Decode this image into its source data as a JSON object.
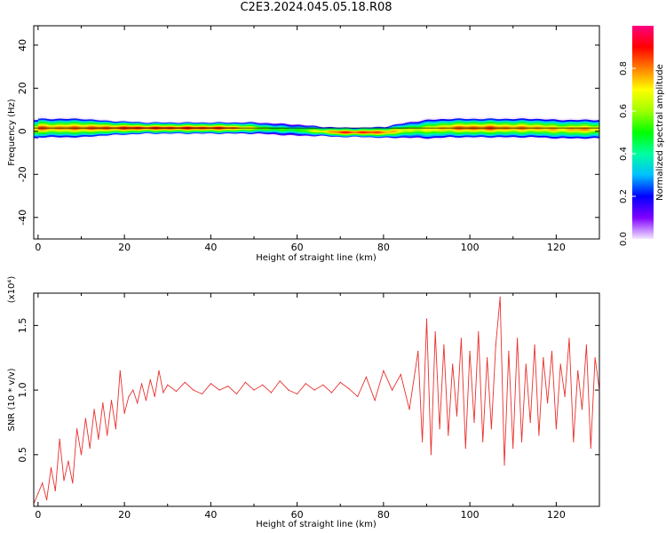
{
  "title": "C2E3.2024.045.05.18.R08",
  "chart_data": [
    {
      "type": "heatmap",
      "xlabel": "Height of straight line (km)",
      "ylabel": "Frequency (Hz)",
      "xlim": [
        -1,
        130
      ],
      "ylim": [
        -50,
        49
      ],
      "xticks": [
        "0",
        "20",
        "40",
        "60",
        "80",
        "100",
        "120"
      ],
      "yticks": [
        "-40",
        "-20",
        "0",
        "20",
        "40"
      ],
      "colorbar": {
        "label": "Normalized spectral amplitude",
        "range": [
          0.0,
          1.0
        ],
        "ticks": [
          "0.0",
          "0.2",
          "0.4",
          "0.6",
          "0.8"
        ],
        "colors": [
          "#f4e6ff",
          "#8000ff",
          "#0000ff",
          "#00c0ff",
          "#00ffa0",
          "#00ff00",
          "#a0ff00",
          "#ffff00",
          "#ff8000",
          "#ff0000",
          "#ff0080"
        ]
      },
      "band": {
        "x": [
          0,
          5,
          10,
          15,
          20,
          25,
          30,
          35,
          40,
          45,
          50,
          55,
          60,
          65,
          70,
          75,
          80,
          85,
          90,
          95,
          100,
          105,
          110,
          115,
          120,
          125,
          130
        ],
        "center_hz": [
          1.5,
          1.5,
          1.5,
          1.5,
          1.5,
          1.5,
          1.5,
          1.5,
          1.5,
          1.5,
          1.5,
          1.0,
          0.5,
          0,
          -0.5,
          -0.5,
          -0.5,
          0.5,
          1.0,
          1.5,
          1.5,
          1.5,
          1.5,
          1.5,
          1.0,
          1.0,
          1.0
        ],
        "halfwidth_hz": [
          5,
          5,
          5,
          4,
          3.5,
          3,
          3,
          3,
          3,
          3,
          3,
          3,
          3,
          2.5,
          2.5,
          2.5,
          3,
          4,
          5,
          5,
          5,
          5,
          5,
          5,
          5,
          5,
          5
        ],
        "peak": [
          0.9,
          0.85,
          0.9,
          0.9,
          0.95,
          0.95,
          0.95,
          0.95,
          0.95,
          0.9,
          0.7,
          0.55,
          0.55,
          0.75,
          0.95,
          0.95,
          0.9,
          0.7,
          0.75,
          0.85,
          0.9,
          0.9,
          0.85,
          0.85,
          0.8,
          0.85,
          0.8
        ]
      }
    },
    {
      "type": "line",
      "xlabel": "Height of straight line (km)",
      "ylabel": "SNR (10 * v/v)",
      "ylabel_multiplier": "(x10⁴)",
      "xlim": [
        -1,
        130
      ],
      "ylim": [
        0.1,
        1.75
      ],
      "xticks": [
        "0",
        "20",
        "40",
        "60",
        "80",
        "100",
        "120"
      ],
      "yticks": [
        "0.5",
        "1.0",
        "1.5"
      ],
      "color": "#e8302c",
      "series": [
        {
          "x": [
            -1,
            0,
            1,
            2,
            3,
            4,
            5,
            6,
            7,
            8,
            9,
            10,
            11,
            12,
            13,
            14,
            15,
            16,
            17,
            18,
            19,
            20,
            21,
            22,
            23,
            24,
            25,
            26,
            27,
            28,
            29,
            30,
            32,
            34,
            36,
            38,
            40,
            42,
            44,
            46,
            48,
            50,
            52,
            54,
            56,
            58,
            60,
            62,
            64,
            66,
            68,
            70,
            72,
            74,
            76,
            78,
            80,
            82,
            84,
            86,
            88,
            89,
            90,
            91,
            92,
            93,
            94,
            95,
            96,
            97,
            98,
            99,
            100,
            101,
            102,
            103,
            104,
            105,
            106,
            107,
            108,
            109,
            110,
            111,
            112,
            113,
            114,
            115,
            116,
            117,
            118,
            119,
            120,
            121,
            122,
            123,
            124,
            125,
            126,
            127,
            128,
            129,
            130
          ],
          "y": [
            0.12,
            0.2,
            0.28,
            0.15,
            0.4,
            0.22,
            0.62,
            0.3,
            0.45,
            0.28,
            0.7,
            0.5,
            0.78,
            0.55,
            0.85,
            0.62,
            0.9,
            0.65,
            0.92,
            0.7,
            1.15,
            0.82,
            0.95,
            1.0,
            0.9,
            1.05,
            0.92,
            1.08,
            0.95,
            1.15,
            0.98,
            1.04,
            0.99,
            1.06,
            1.0,
            0.97,
            1.05,
            1.0,
            1.03,
            0.97,
            1.06,
            1.0,
            1.04,
            0.98,
            1.07,
            1.0,
            0.97,
            1.05,
            1.0,
            1.04,
            0.98,
            1.06,
            1.01,
            0.95,
            1.1,
            0.92,
            1.15,
            1.0,
            1.12,
            0.85,
            1.3,
            0.6,
            1.55,
            0.5,
            1.45,
            0.7,
            1.35,
            0.65,
            1.2,
            0.8,
            1.4,
            0.55,
            1.3,
            0.75,
            1.45,
            0.6,
            1.25,
            0.7,
            1.35,
            1.72,
            0.42,
            1.3,
            0.55,
            1.4,
            0.6,
            1.2,
            0.75,
            1.35,
            0.65,
            1.25,
            0.9,
            1.3,
            0.7,
            1.2,
            0.95,
            1.4,
            0.6,
            1.15,
            0.85,
            1.35,
            0.55,
            1.25,
            1.0
          ]
        }
      ]
    }
  ]
}
